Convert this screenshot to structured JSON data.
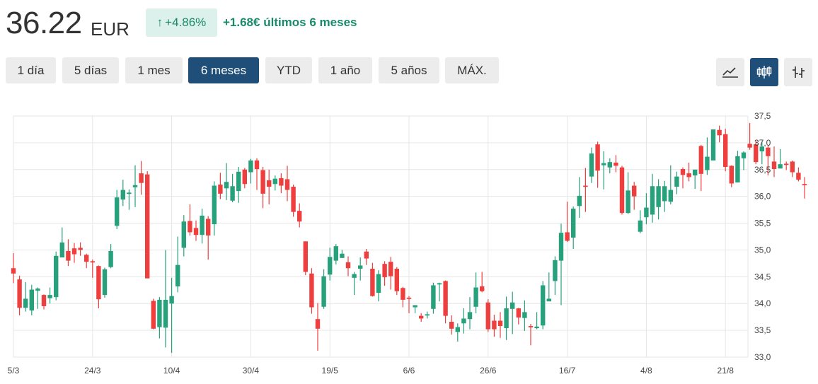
{
  "header": {
    "price": "36.22",
    "currency": "EUR",
    "change_pct": "+4.86%",
    "change_text": "+1.68€ últimos 6 meses"
  },
  "ranges": [
    {
      "label": "1 día",
      "active": false
    },
    {
      "label": "5 días",
      "active": false
    },
    {
      "label": "1 mes",
      "active": false
    },
    {
      "label": "6 meses",
      "active": true
    },
    {
      "label": "YTD",
      "active": false
    },
    {
      "label": "1 año",
      "active": false
    },
    {
      "label": "5 años",
      "active": false
    },
    {
      "label": "MÁX.",
      "active": false
    }
  ],
  "chart_types": [
    {
      "icon": "line-chart-icon",
      "active": false
    },
    {
      "icon": "candlestick-icon",
      "active": true
    },
    {
      "icon": "ohlc-bars-icon",
      "active": false
    }
  ],
  "colors": {
    "up": "#26a17b",
    "down": "#ef3e3e",
    "accent": "#1f4e79",
    "change": "#1a8a6a"
  },
  "chart_data": {
    "type": "candlestick",
    "ylim": [
      33.0,
      37.5
    ],
    "yticks": [
      "33,0",
      "33,5",
      "34,0",
      "34,5",
      "35,0",
      "35,5",
      "36,0",
      "36,5",
      "37,0",
      "37,5"
    ],
    "xticks": [
      {
        "label": "5/3",
        "index": 0
      },
      {
        "label": "24/3",
        "index": 13
      },
      {
        "label": "10/4",
        "index": 26
      },
      {
        "label": "30/4",
        "index": 39
      },
      {
        "label": "19/5",
        "index": 52
      },
      {
        "label": "6/6",
        "index": 65
      },
      {
        "label": "26/6",
        "index": 78
      },
      {
        "label": "16/7",
        "index": 91
      },
      {
        "label": "4/8",
        "index": 104
      },
      {
        "label": "21/8",
        "index": 117
      }
    ],
    "grid": true,
    "candles": [
      [
        34.66,
        34.56,
        34.94,
        34.38
      ],
      [
        34.45,
        33.92,
        34.52,
        33.78
      ],
      [
        33.92,
        34.09,
        34.4,
        33.85
      ],
      [
        33.87,
        34.26,
        34.35,
        33.78
      ],
      [
        34.24,
        34.28,
        34.3,
        33.9
      ],
      [
        34.16,
        33.95,
        34.17,
        33.89
      ],
      [
        34.1,
        34.16,
        34.3,
        34.0
      ],
      [
        34.12,
        34.89,
        34.97,
        34.06
      ],
      [
        34.86,
        35.14,
        35.42,
        34.88
      ],
      [
        34.98,
        34.8,
        35.2,
        34.7
      ],
      [
        35.03,
        34.92,
        35.13,
        34.76
      ],
      [
        35.04,
        35.0,
        35.14,
        34.89
      ],
      [
        34.91,
        34.78,
        34.93,
        34.66
      ],
      [
        34.79,
        34.77,
        34.82,
        34.48
      ],
      [
        34.7,
        34.08,
        34.71,
        33.91
      ],
      [
        34.16,
        34.64,
        34.67,
        34.11
      ],
      [
        34.68,
        34.98,
        35.11,
        34.66
      ],
      [
        35.45,
        35.98,
        36.12,
        35.39
      ],
      [
        35.94,
        36.12,
        36.31,
        35.82
      ],
      [
        36.05,
        36.07,
        36.13,
        35.75
      ],
      [
        36.17,
        36.21,
        36.58,
        35.8
      ],
      [
        36.43,
        36.25,
        36.66,
        36.03
      ],
      [
        36.41,
        34.47,
        36.47,
        34.47
      ],
      [
        34.05,
        33.53,
        34.09,
        33.52
      ],
      [
        33.56,
        34.07,
        34.12,
        33.35
      ],
      [
        33.55,
        34.07,
        35.0,
        33.18
      ],
      [
        34.0,
        34.14,
        34.48,
        33.08
      ],
      [
        34.32,
        34.72,
        35.25,
        34.21
      ],
      [
        35.04,
        35.53,
        35.65,
        34.88
      ],
      [
        35.54,
        35.33,
        35.85,
        35.27
      ],
      [
        35.41,
        35.28,
        35.55,
        35.17
      ],
      [
        35.28,
        35.64,
        35.77,
        35.12
      ],
      [
        35.58,
        35.27,
        35.63,
        34.82
      ],
      [
        35.48,
        36.2,
        36.28,
        35.27
      ],
      [
        36.22,
        36.05,
        36.44,
        35.95
      ],
      [
        36.15,
        36.27,
        36.62,
        35.93
      ],
      [
        35.92,
        36.19,
        36.42,
        35.89
      ],
      [
        36.1,
        36.46,
        36.55,
        35.88
      ],
      [
        36.5,
        36.23,
        36.53,
        36.15
      ],
      [
        36.45,
        36.67,
        36.7,
        36.24
      ],
      [
        36.67,
        36.51,
        36.71,
        36.12
      ],
      [
        36.49,
        36.05,
        36.55,
        35.78
      ],
      [
        36.3,
        36.18,
        36.5,
        35.85
      ],
      [
        36.23,
        36.33,
        36.39,
        36.11
      ],
      [
        36.34,
        36.2,
        36.43,
        36.06
      ],
      [
        36.32,
        36.12,
        36.57,
        35.91
      ],
      [
        36.18,
        35.71,
        36.22,
        35.62
      ],
      [
        35.73,
        35.53,
        35.87,
        35.42
      ],
      [
        35.16,
        34.59,
        35.16,
        34.53
      ],
      [
        34.56,
        33.93,
        34.66,
        33.81
      ],
      [
        33.71,
        33.53,
        34.01,
        33.12
      ],
      [
        33.94,
        34.51,
        34.64,
        33.9
      ],
      [
        34.54,
        34.87,
        35.04,
        34.43
      ],
      [
        34.8,
        35.07,
        35.11,
        34.73
      ],
      [
        34.85,
        34.93,
        35.0,
        34.85
      ],
      [
        34.77,
        34.66,
        34.88,
        34.51
      ],
      [
        34.48,
        34.55,
        34.59,
        34.16
      ],
      [
        34.65,
        34.71,
        34.86,
        34.43
      ],
      [
        34.97,
        34.84,
        35.02,
        34.72
      ],
      [
        34.65,
        34.14,
        34.76,
        34.13
      ],
      [
        34.2,
        34.55,
        34.62,
        34.04
      ],
      [
        34.74,
        34.49,
        34.79,
        34.33
      ],
      [
        34.78,
        34.51,
        34.87,
        34.26
      ],
      [
        34.65,
        34.23,
        34.68,
        34.16
      ],
      [
        34.29,
        34.07,
        34.31,
        33.93
      ],
      [
        34.11,
        34.09,
        34.14,
        33.82
      ],
      [
        33.93,
        33.97,
        33.97,
        33.82
      ],
      [
        33.77,
        33.72,
        33.82,
        33.66
      ],
      [
        33.79,
        33.8,
        33.85,
        33.72
      ],
      [
        33.9,
        34.34,
        34.39,
        33.81
      ],
      [
        34.38,
        34.38,
        34.39,
        34.04
      ],
      [
        34.42,
        33.77,
        34.43,
        33.63
      ],
      [
        33.66,
        33.53,
        33.78,
        33.42
      ],
      [
        33.47,
        33.56,
        33.63,
        33.29
      ],
      [
        33.63,
        33.72,
        33.91,
        33.44
      ],
      [
        33.71,
        33.84,
        34.12,
        33.52
      ],
      [
        33.94,
        34.3,
        34.58,
        33.82
      ],
      [
        34.32,
        34.23,
        34.59,
        34.21
      ],
      [
        34.02,
        33.52,
        34.08,
        33.47
      ],
      [
        33.68,
        33.52,
        33.79,
        33.38
      ],
      [
        33.68,
        33.58,
        33.84,
        33.36
      ],
      [
        33.54,
        33.91,
        34.13,
        33.32
      ],
      [
        33.9,
        34.02,
        34.22,
        33.43
      ],
      [
        33.91,
        33.74,
        33.92,
        33.61
      ],
      [
        33.73,
        33.84,
        34.06,
        33.49
      ],
      [
        33.58,
        33.56,
        33.62,
        33.22
      ],
      [
        33.54,
        33.57,
        33.84,
        33.52
      ],
      [
        33.59,
        34.34,
        34.42,
        33.52
      ],
      [
        34.04,
        34.09,
        34.58,
        34.05
      ],
      [
        34.42,
        34.81,
        34.88,
        34.16
      ],
      [
        34.8,
        35.32,
        35.49,
        33.97
      ],
      [
        35.33,
        35.17,
        35.9,
        35.15
      ],
      [
        35.23,
        35.77,
        35.81,
        35.02
      ],
      [
        35.82,
        36.01,
        36.36,
        35.6
      ],
      [
        36.2,
        36.18,
        36.53,
        35.71
      ],
      [
        36.37,
        36.8,
        36.91,
        36.25
      ],
      [
        36.97,
        36.48,
        37.02,
        36.16
      ],
      [
        36.58,
        36.62,
        36.84,
        36.13
      ],
      [
        36.54,
        36.64,
        36.71,
        36.43
      ],
      [
        36.63,
        36.57,
        36.77,
        36.45
      ],
      [
        36.54,
        35.69,
        36.57,
        35.66
      ],
      [
        35.69,
        36.11,
        36.45,
        35.67
      ],
      [
        36.2,
        36.0,
        36.27,
        35.75
      ],
      [
        35.34,
        35.55,
        35.74,
        35.31
      ],
      [
        35.61,
        35.79,
        36.06,
        35.48
      ],
      [
        35.66,
        36.19,
        36.42,
        35.51
      ],
      [
        35.8,
        36.19,
        36.32,
        35.57
      ],
      [
        35.91,
        36.19,
        36.29,
        35.71
      ],
      [
        35.9,
        36.12,
        36.58,
        35.85
      ],
      [
        36.18,
        36.37,
        36.46,
        36.04
      ],
      [
        36.51,
        36.4,
        36.54,
        36.15
      ],
      [
        36.43,
        36.36,
        36.63,
        36.28
      ],
      [
        36.39,
        36.5,
        36.48,
        36.14
      ],
      [
        36.94,
        36.42,
        36.96,
        36.1
      ],
      [
        36.49,
        36.74,
        37.1,
        36.4
      ],
      [
        36.67,
        37.25,
        37.25,
        36.68
      ],
      [
        37.24,
        37.14,
        37.32,
        37.01
      ],
      [
        37.16,
        36.55,
        37.26,
        36.47
      ],
      [
        36.57,
        36.24,
        36.58,
        36.17
      ],
      [
        36.26,
        36.75,
        36.85,
        36.27
      ],
      [
        36.71,
        36.82,
        36.84,
        36.49
      ],
      [
        36.98,
        36.91,
        37.37,
        36.87
      ],
      [
        36.97,
        36.64,
        37.04,
        36.6
      ],
      [
        36.84,
        36.93,
        37.02,
        36.6
      ],
      [
        36.91,
        36.75,
        36.95,
        36.39
      ],
      [
        36.65,
        36.51,
        36.93,
        36.36
      ],
      [
        36.52,
        36.6,
        36.88,
        36.52
      ],
      [
        36.61,
        36.6,
        36.65,
        36.49
      ],
      [
        36.65,
        36.45,
        36.67,
        36.36
      ],
      [
        36.44,
        36.31,
        36.54,
        36.28
      ],
      [
        36.23,
        36.22,
        36.36,
        35.96
      ]
    ]
  }
}
